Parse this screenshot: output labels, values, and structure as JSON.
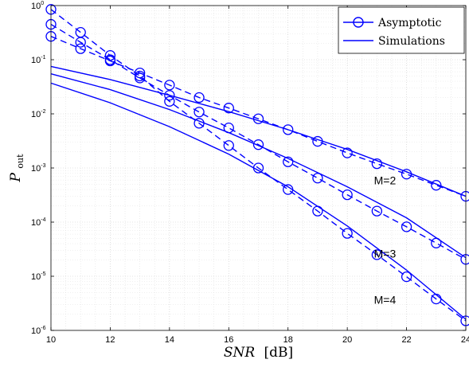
{
  "chart_data": {
    "type": "line",
    "xlabel": "SNR",
    "xlabel_unit": "[dB]",
    "ylabel": "P",
    "ylabel_sub": "out",
    "xlim": [
      10,
      24
    ],
    "ylim": [
      1e-06,
      1
    ],
    "yscale": "log",
    "grid": true,
    "x_ticks": [
      10,
      12,
      14,
      16,
      18,
      20,
      22,
      24
    ],
    "y_ticks": [
      {
        "base": "10",
        "exp": "-6"
      },
      {
        "base": "10",
        "exp": "-5"
      },
      {
        "base": "10",
        "exp": "-4"
      },
      {
        "base": "10",
        "exp": "-3"
      },
      {
        "base": "10",
        "exp": "-2"
      },
      {
        "base": "10",
        "exp": "-1"
      },
      {
        "base": "10",
        "exp": "0"
      }
    ],
    "legend_position": "top-right",
    "legend": [
      {
        "label": "Asymptotic",
        "style": "dashed-circle"
      },
      {
        "label": "Simulations",
        "style": "solid"
      }
    ],
    "color": "#0000ff",
    "series": [
      {
        "name": "M=2",
        "kind": "asymptotic",
        "x": [
          10,
          11,
          12,
          13,
          14,
          15,
          16,
          17,
          18,
          19,
          20,
          21,
          22,
          23,
          24
        ],
        "y": [
          0.27,
          0.16,
          0.095,
          0.057,
          0.034,
          0.02,
          0.0128,
          0.0081,
          0.0051,
          0.0031,
          0.0019,
          0.0012,
          0.00077,
          0.00048,
          0.0003
        ]
      },
      {
        "name": "M=3",
        "kind": "asymptotic",
        "x": [
          10,
          11,
          12,
          13,
          14,
          15,
          16,
          17,
          18,
          19,
          20,
          21,
          22,
          23,
          24
        ],
        "y": [
          0.45,
          0.21,
          0.1,
          0.046,
          0.022,
          0.0108,
          0.0055,
          0.0027,
          0.0013,
          0.00065,
          0.00032,
          0.00016,
          8.2e-05,
          4.1e-05,
          2.05e-05
        ]
      },
      {
        "name": "M=4",
        "kind": "asymptotic",
        "x": [
          10,
          11,
          12,
          13,
          14,
          15,
          16,
          17,
          18,
          19,
          20,
          21,
          22,
          23,
          24
        ],
        "y": [
          0.85,
          0.32,
          0.12,
          0.05,
          0.017,
          0.0067,
          0.0026,
          0.001,
          0.0004,
          0.00016,
          6.2e-05,
          2.5e-05,
          9.8e-06,
          3.8e-06,
          1.5e-06
        ]
      },
      {
        "name": "M=2",
        "kind": "simulation",
        "x": [
          10,
          12,
          14,
          16,
          18,
          20,
          22,
          24
        ],
        "y": [
          0.075,
          0.043,
          0.022,
          0.011,
          0.0051,
          0.0022,
          0.00085,
          0.0003
        ]
      },
      {
        "name": "M=3",
        "kind": "simulation",
        "x": [
          10,
          12,
          14,
          16,
          18,
          20,
          22,
          24
        ],
        "y": [
          0.055,
          0.028,
          0.012,
          0.0045,
          0.0015,
          0.00045,
          0.00012,
          2.2e-05
        ]
      },
      {
        "name": "M=4",
        "kind": "simulation",
        "x": [
          10,
          12,
          14,
          16,
          18,
          20,
          22,
          24
        ],
        "y": [
          0.037,
          0.016,
          0.0058,
          0.0018,
          0.00045,
          8.5e-05,
          1.3e-05,
          1.6e-06
        ]
      }
    ],
    "annotations": [
      {
        "text": "M=2",
        "x": 20.9,
        "y": 0.0005
      },
      {
        "text": "M=3",
        "x": 20.9,
        "y": 2.2e-05
      },
      {
        "text": "M=4",
        "x": 20.9,
        "y": 3.1e-06
      }
    ]
  }
}
